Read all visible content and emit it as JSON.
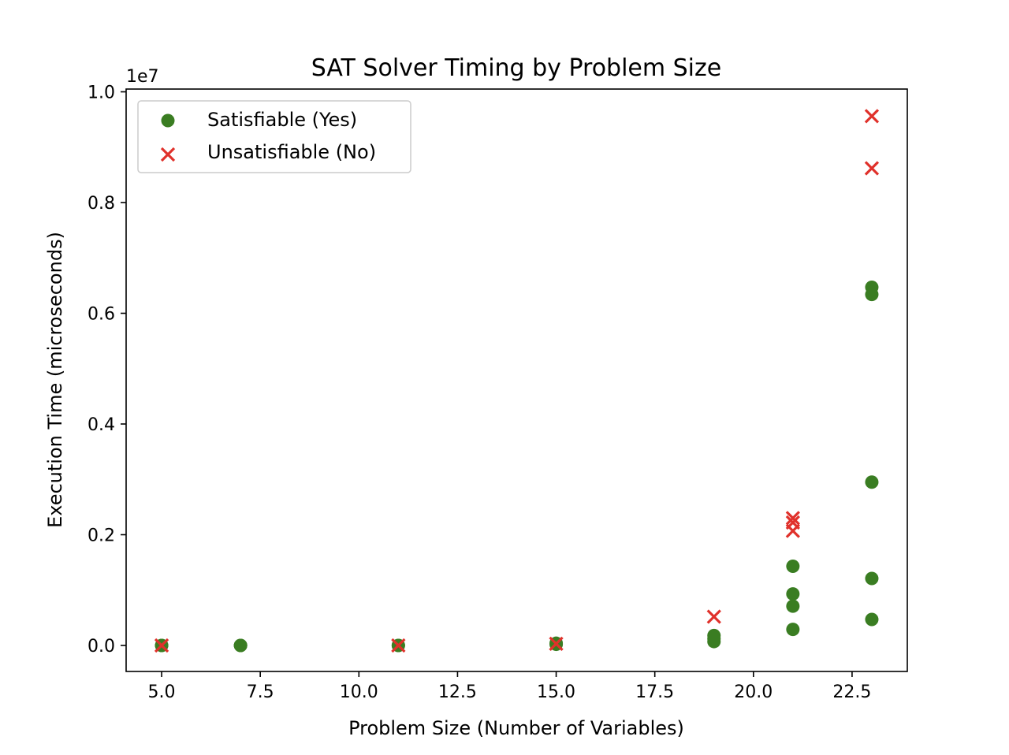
{
  "chart_data": {
    "type": "scatter",
    "title": "SAT Solver Timing by Problem Size",
    "xlabel": "Problem Size (Number of Variables)",
    "ylabel": "Execution Time (microseconds)",
    "y_multiplier_label": "1e7",
    "y_multiplier": 10000000,
    "xlim": [
      4.1,
      23.9
    ],
    "ylim": [
      -470000,
      10050000
    ],
    "x_ticks": [
      5.0,
      7.5,
      10.0,
      12.5,
      15.0,
      17.5,
      20.0,
      22.5
    ],
    "x_tick_labels": [
      "5.0",
      "7.5",
      "10.0",
      "12.5",
      "15.0",
      "17.5",
      "20.0",
      "22.5"
    ],
    "y_ticks": [
      0,
      2000000,
      4000000,
      6000000,
      8000000,
      10000000
    ],
    "y_tick_labels": [
      "0.0",
      "0.2",
      "0.4",
      "0.6",
      "0.8",
      "1.0"
    ],
    "grid": false,
    "legend_position": "upper-left",
    "series": [
      {
        "name": "Satisfiable (Yes)",
        "marker": "circle",
        "color": "#3a7d22",
        "points": [
          {
            "x": 5,
            "y": 0
          },
          {
            "x": 5,
            "y": 0
          },
          {
            "x": 7,
            "y": 0
          },
          {
            "x": 7,
            "y": 0
          },
          {
            "x": 7,
            "y": 0
          },
          {
            "x": 11,
            "y": 0
          },
          {
            "x": 11,
            "y": 0
          },
          {
            "x": 15,
            "y": 20000
          },
          {
            "x": 15,
            "y": 40000
          },
          {
            "x": 19,
            "y": 70000
          },
          {
            "x": 19,
            "y": 120000
          },
          {
            "x": 19,
            "y": 180000
          },
          {
            "x": 21,
            "y": 290000
          },
          {
            "x": 21,
            "y": 710000
          },
          {
            "x": 21,
            "y": 930000
          },
          {
            "x": 21,
            "y": 1430000
          },
          {
            "x": 23,
            "y": 470000
          },
          {
            "x": 23,
            "y": 1210000
          },
          {
            "x": 23,
            "y": 2950000
          },
          {
            "x": 23,
            "y": 6340000
          },
          {
            "x": 23,
            "y": 6470000
          }
        ]
      },
      {
        "name": "Unsatisfiable (No)",
        "marker": "x",
        "color": "#e0312b",
        "points": [
          {
            "x": 5,
            "y": 0
          },
          {
            "x": 11,
            "y": 0
          },
          {
            "x": 15,
            "y": 30000
          },
          {
            "x": 19,
            "y": 520000
          },
          {
            "x": 21,
            "y": 2070000
          },
          {
            "x": 21,
            "y": 2220000
          },
          {
            "x": 21,
            "y": 2300000
          },
          {
            "x": 23,
            "y": 8620000
          },
          {
            "x": 23,
            "y": 9560000
          }
        ]
      }
    ]
  }
}
